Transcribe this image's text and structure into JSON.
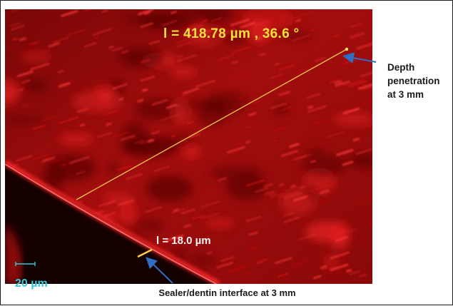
{
  "figure": {
    "measurement_long": "l = 418.78 µm ,  36.6 °",
    "measurement_short": "l = 18.0 µm",
    "scale_bar_label": "20 µm",
    "depth_annotation": [
      "Depth",
      "penetration",
      "at 3 mm"
    ],
    "interface_annotation": "Sealer/dentin interface at 3 mm"
  },
  "colors": {
    "fluorescence": "#e01818",
    "measure_line": "#f2c94c",
    "arrow": "#2f6ec2",
    "scale_bar": "#35c6d8",
    "label_text": "#1a1a1a"
  },
  "icons": {
    "depth_arrow": "arrow-left-icon",
    "interface_arrow": "arrow-up-left-icon"
  }
}
